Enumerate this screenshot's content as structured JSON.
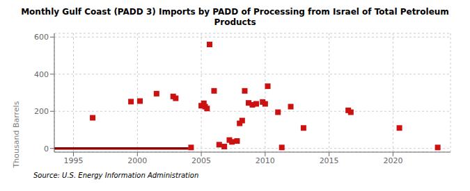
{
  "chart_data": {
    "type": "scatter",
    "title": "Monthly Gulf Coast (PADD 3) Imports by PADD of Processing from Israel of Total Petroleum\nProducts",
    "ylabel": "Thousand Barrels",
    "annotations": [
      "Source: U.S. Energy Information Administration"
    ],
    "xlim": [
      1993.5,
      2024.5
    ],
    "ylim": [
      -20,
      620
    ],
    "xticks": [
      1995,
      2000,
      2005,
      2010,
      2015,
      2020
    ],
    "yticks": [
      0,
      200,
      400,
      600
    ],
    "grid": true,
    "series": [
      {
        "type": "scatter",
        "marker": "square",
        "color": "#cc1111",
        "x": [
          1996.5,
          1999.5,
          2000.2,
          2001.5,
          2002.8,
          2003.0,
          2004.2,
          2005.0,
          2005.2,
          2005.3,
          2005.45,
          2005.65,
          2006.0,
          2006.4,
          2006.8,
          2007.2,
          2007.4,
          2007.8,
          2008.0,
          2008.2,
          2008.4,
          2008.7,
          2009.0,
          2009.3,
          2009.8,
          2010.0,
          2010.2,
          2011.0,
          2011.3,
          2012.0,
          2013.0,
          2016.5,
          2016.7,
          2020.5,
          2023.5
        ],
        "values": [
          165,
          252,
          255,
          295,
          280,
          270,
          5,
          230,
          243,
          225,
          215,
          560,
          310,
          20,
          10,
          45,
          35,
          40,
          135,
          150,
          310,
          245,
          235,
          240,
          250,
          240,
          335,
          195,
          5,
          225,
          110,
          205,
          195,
          110,
          5
        ]
      },
      {
        "type": "line",
        "color": "#8b0000",
        "x": [
          1993.5,
          2004.0
        ],
        "values": [
          0,
          0
        ]
      }
    ]
  }
}
